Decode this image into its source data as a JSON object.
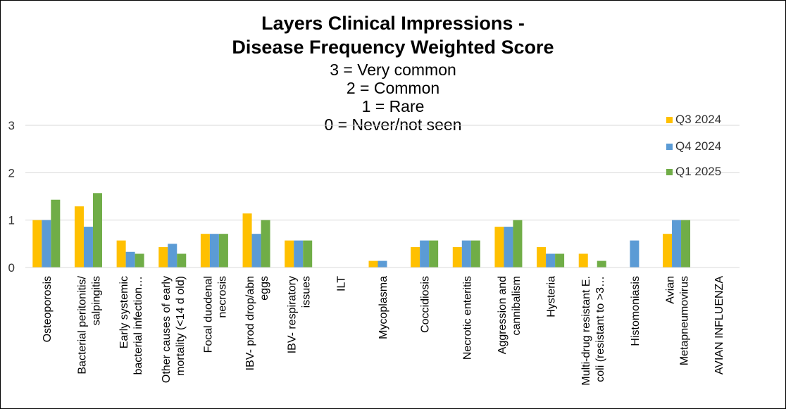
{
  "chart_data": {
    "type": "bar",
    "title_lines": [
      "Layers Clinical Impressions -",
      "Disease Frequency Weighted Score"
    ],
    "subtitle_lines": [
      "3 = Very common",
      "2 = Common",
      "1 = Rare",
      "0 = Never/not seen"
    ],
    "ylim": [
      0,
      3
    ],
    "yticks": [
      0,
      1,
      2,
      3
    ],
    "grid": true,
    "legend_position": "top-right",
    "categories": [
      [
        "Osteoporosis"
      ],
      [
        "Bacterial peritonitis/",
        "salpingitis"
      ],
      [
        "Early systemic",
        "bacterial infection…"
      ],
      [
        "Other causes of early",
        "mortality (<14 d old)"
      ],
      [
        "Focal duodenal",
        "necrosis"
      ],
      [
        "IBV- prod drop/abn",
        "eggs"
      ],
      [
        "IBV- respiratory",
        "issues"
      ],
      [
        "ILT"
      ],
      [
        "Mycoplasma"
      ],
      [
        "Coccidiosis"
      ],
      [
        "Necrotic enteritis"
      ],
      [
        "Aggression and",
        "cannibalism"
      ],
      [
        "Hysteria"
      ],
      [
        "Multi-drug resistant E.",
        "coli (resistant to >3…"
      ],
      [
        "Histomoniasis"
      ],
      [
        "Avian",
        "Metapneumovirus"
      ],
      [
        "AVIAN INFLUENZA"
      ]
    ],
    "series": [
      {
        "name": "Q3 2024",
        "color": "#FFC000",
        "values": [
          1.0,
          1.29,
          0.57,
          0.43,
          0.71,
          1.14,
          0.57,
          0,
          0.14,
          0.43,
          0.43,
          0.86,
          0.43,
          0.29,
          0,
          0.71,
          0
        ]
      },
      {
        "name": "Q4 2024",
        "color": "#5B9BD5",
        "values": [
          1.0,
          0.86,
          0.33,
          0.5,
          0.71,
          0.71,
          0.57,
          0,
          0.14,
          0.57,
          0.57,
          0.86,
          0.29,
          0,
          0.57,
          1.0,
          0
        ]
      },
      {
        "name": "Q1 2025",
        "color": "#70AD47",
        "values": [
          1.43,
          1.57,
          0.29,
          0.29,
          0.71,
          1.0,
          0.57,
          0,
          0,
          0.57,
          0.57,
          1.0,
          0.29,
          0.14,
          0,
          1.0,
          0
        ]
      }
    ]
  }
}
